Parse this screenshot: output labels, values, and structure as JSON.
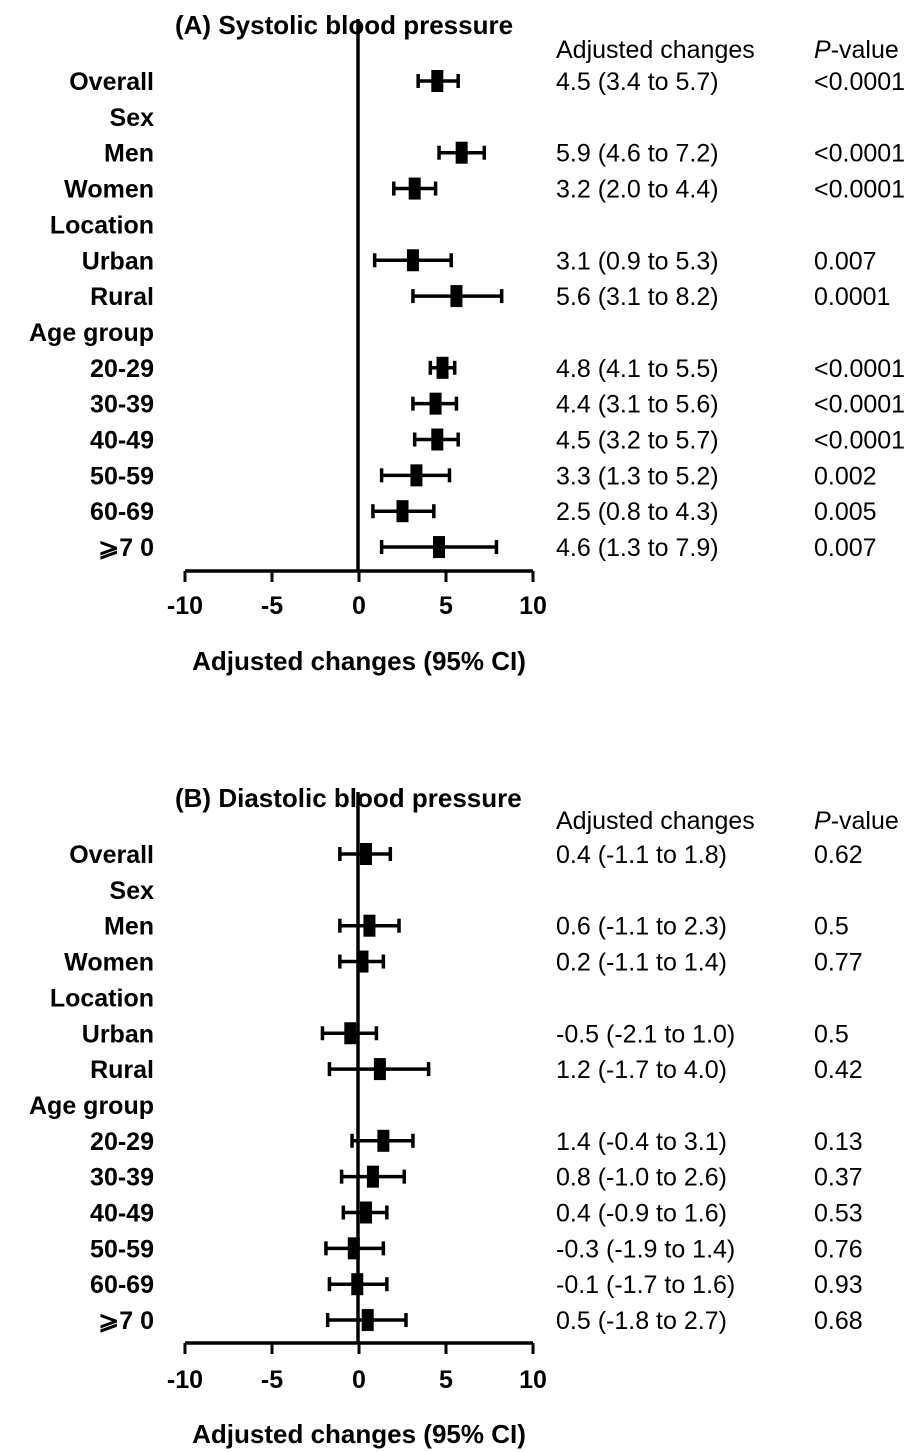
{
  "chart_data": [
    {
      "type": "forest",
      "title": "(A) Systolic blood pressure",
      "column_headers": {
        "estimate": "Adjusted changes",
        "p_value_italic": "P",
        "p_value_rest": "-value"
      },
      "xlabel": "Adjusted changes (95% CI)",
      "xlim": [
        -10,
        10
      ],
      "xticks": [
        -10,
        -5,
        0,
        5,
        10
      ],
      "rows": [
        {
          "label": "Overall",
          "estimate": 4.5,
          "lower": 3.4,
          "upper": 5.7,
          "text": "4.5 (3.4 to 5.7)",
          "p": "<0.0001"
        },
        {
          "label": "Sex",
          "header": true
        },
        {
          "label": "Men",
          "estimate": 5.9,
          "lower": 4.6,
          "upper": 7.2,
          "text": "5.9 (4.6 to 7.2)",
          "p": "<0.0001"
        },
        {
          "label": "Women",
          "estimate": 3.2,
          "lower": 2.0,
          "upper": 4.4,
          "text": "3.2 (2.0 to 4.4)",
          "p": "<0.0001"
        },
        {
          "label": "Location",
          "header": true
        },
        {
          "label": "Urban",
          "estimate": 3.1,
          "lower": 0.9,
          "upper": 5.3,
          "text": "3.1 (0.9 to 5.3)",
          "p": "0.007"
        },
        {
          "label": "Rural",
          "estimate": 5.6,
          "lower": 3.1,
          "upper": 8.2,
          "text": "5.6 (3.1 to 8.2)",
          "p": "0.0001"
        },
        {
          "label": "Age group",
          "header": true
        },
        {
          "label": "20-29",
          "estimate": 4.8,
          "lower": 4.1,
          "upper": 5.5,
          "text": "4.8 (4.1 to 5.5)",
          "p": "<0.0001"
        },
        {
          "label": "30-39",
          "estimate": 4.4,
          "lower": 3.1,
          "upper": 5.6,
          "text": "4.4 (3.1 to 5.6)",
          "p": "<0.0001"
        },
        {
          "label": "40-49",
          "estimate": 4.5,
          "lower": 3.2,
          "upper": 5.7,
          "text": "4.5 (3.2 to 5.7)",
          "p": "<0.0001"
        },
        {
          "label": "50-59",
          "estimate": 3.3,
          "lower": 1.3,
          "upper": 5.2,
          "text": "3.3 (1.3 to 5.2)",
          "p": "0.002"
        },
        {
          "label": "60-69",
          "estimate": 2.5,
          "lower": 0.8,
          "upper": 4.3,
          "text": "2.5 (0.8 to 4.3)",
          "p": "0.005"
        },
        {
          "label": "⩾7 0",
          "estimate": 4.6,
          "lower": 1.3,
          "upper": 7.9,
          "text": "4.6 (1.3 to 7.9)",
          "p": "0.007"
        }
      ]
    },
    {
      "type": "forest",
      "title": "(B) Diastolic blood pressure",
      "column_headers": {
        "estimate": "Adjusted changes",
        "p_value_italic": "P",
        "p_value_rest": "-value"
      },
      "xlabel": "Adjusted changes (95% CI)",
      "xlim": [
        -10,
        10
      ],
      "xticks": [
        -10,
        -5,
        0,
        5,
        10
      ],
      "rows": [
        {
          "label": "Overall",
          "estimate": 0.4,
          "lower": -1.1,
          "upper": 1.8,
          "text": "0.4 (-1.1 to 1.8)",
          "p": "0.62"
        },
        {
          "label": "Sex",
          "header": true
        },
        {
          "label": "Men",
          "estimate": 0.6,
          "lower": -1.1,
          "upper": 2.3,
          "text": "0.6 (-1.1 to 2.3)",
          "p": "0.5"
        },
        {
          "label": "Women",
          "estimate": 0.2,
          "lower": -1.1,
          "upper": 1.4,
          "text": "0.2 (-1.1 to 1.4)",
          "p": "0.77"
        },
        {
          "label": "Location",
          "header": true
        },
        {
          "label": "Urban",
          "estimate": -0.5,
          "lower": -2.1,
          "upper": 1.0,
          "text": "-0.5 (-2.1 to 1.0)",
          "p": "0.5"
        },
        {
          "label": "Rural",
          "estimate": 1.2,
          "lower": -1.7,
          "upper": 4.0,
          "text": "1.2 (-1.7 to 4.0)",
          "p": "0.42"
        },
        {
          "label": "Age group",
          "header": true
        },
        {
          "label": "20-29",
          "estimate": 1.4,
          "lower": -0.4,
          "upper": 3.1,
          "text": "1.4 (-0.4 to 3.1)",
          "p": "0.13"
        },
        {
          "label": "30-39",
          "estimate": 0.8,
          "lower": -1.0,
          "upper": 2.6,
          "text": "0.8 (-1.0 to 2.6)",
          "p": "0.37"
        },
        {
          "label": "40-49",
          "estimate": 0.4,
          "lower": -0.9,
          "upper": 1.6,
          "text": "0.4 (-0.9 to 1.6)",
          "p": "0.53"
        },
        {
          "label": "50-59",
          "estimate": -0.3,
          "lower": -1.9,
          "upper": 1.4,
          "text": "-0.3 (-1.9 to 1.4)",
          "p": "0.76"
        },
        {
          "label": "60-69",
          "estimate": -0.1,
          "lower": -1.7,
          "upper": 1.6,
          "text": "-0.1 (-1.7 to 1.6)",
          "p": "0.93"
        },
        {
          "label": "⩾7 0",
          "estimate": 0.5,
          "lower": -1.8,
          "upper": 2.7,
          "text": "0.5 (-1.8 to 2.7)",
          "p": "0.68"
        }
      ]
    }
  ]
}
